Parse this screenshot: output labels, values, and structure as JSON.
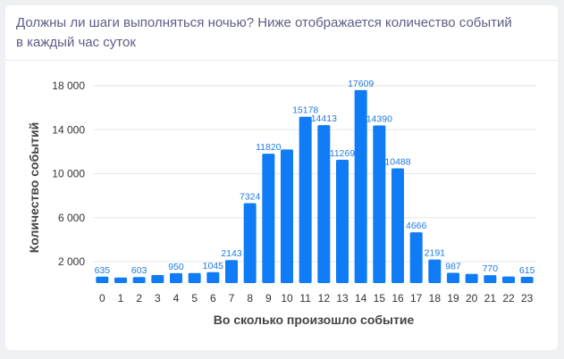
{
  "header": {
    "title": "Должны ли шаги выполняться ночью? Ниже отображается количество событий в каждый час суток"
  },
  "colors": {
    "bar": "#0f7bf5",
    "label": "#1f7ae0",
    "grid": "#e6e6e6",
    "title": "#5b5e86"
  },
  "chart_data": {
    "type": "bar",
    "xlabel": "Во сколько произошло событие",
    "ylabel": "Количество событий",
    "ylim": [
      0,
      18000
    ],
    "yticks": [
      {
        "value": 2000,
        "label": "2 000"
      },
      {
        "value": 6000,
        "label": "6 000"
      },
      {
        "value": 10000,
        "label": "10 000"
      },
      {
        "value": 14000,
        "label": "14 000"
      },
      {
        "value": 18000,
        "label": "18 000"
      }
    ],
    "grid": true,
    "legend": "none",
    "categories": [
      "0",
      "1",
      "2",
      "3",
      "4",
      "5",
      "6",
      "7",
      "8",
      "9",
      "10",
      "11",
      "12",
      "13",
      "14",
      "15",
      "16",
      "17",
      "18",
      "19",
      "20",
      "21",
      "22",
      "23"
    ],
    "values": [
      635,
      560,
      603,
      780,
      950,
      960,
      1045,
      2143,
      7324,
      11820,
      12200,
      15178,
      14413,
      11269,
      17609,
      14390,
      10488,
      4666,
      2191,
      987,
      880,
      770,
      650,
      615
    ],
    "data_labels": [
      "635",
      "",
      "603",
      "",
      "950",
      "",
      "1045",
      "2143",
      "7324",
      "11820",
      "",
      "15178",
      "14413",
      "11269",
      "17609",
      "14390",
      "10488",
      "4666",
      "2191",
      "987",
      "",
      "770",
      "",
      "615"
    ]
  }
}
